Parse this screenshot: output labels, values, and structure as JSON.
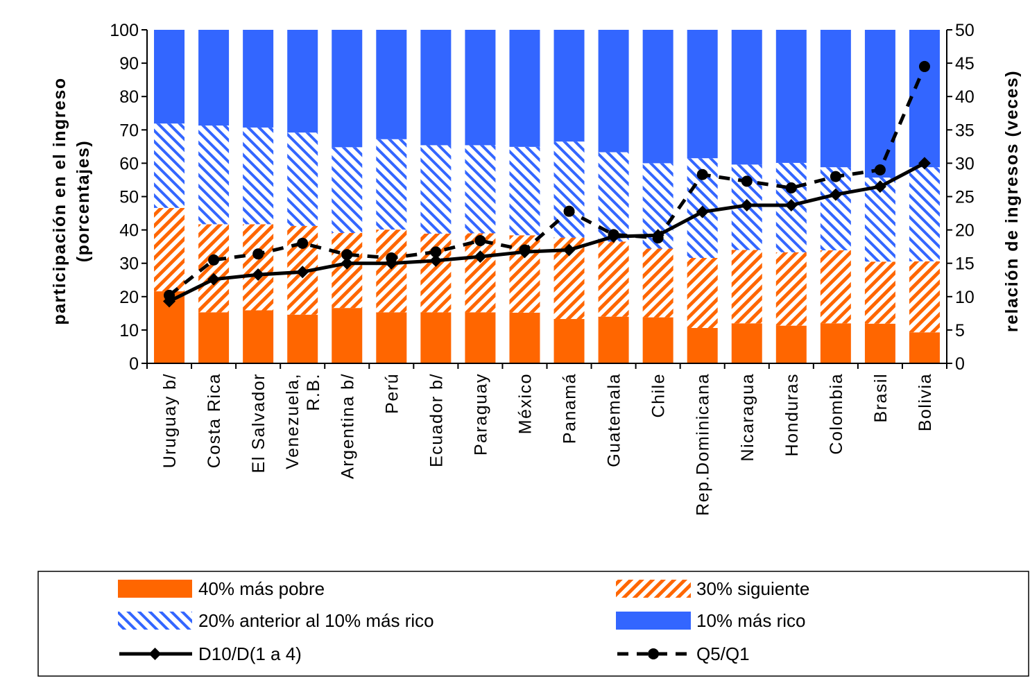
{
  "chart_data": {
    "type": "bar",
    "stacked": true,
    "categories": [
      "Uruguay b/",
      "Costa Rica",
      "El Salvador",
      "Venezuela, R.B.",
      "Argentina b/",
      "Perú",
      "Ecuador b/",
      "Paraguay",
      "México",
      "Panamá",
      "Guatemala",
      "Chile",
      "Rep.Dominicana",
      "Nicaragua",
      "Honduras",
      "Colombia",
      "Brasil",
      "Bolivia"
    ],
    "category_lines": [
      [
        "Uruguay b/"
      ],
      [
        "Costa Rica"
      ],
      [
        "El Salvador"
      ],
      [
        "Venezuela,",
        "R.B."
      ],
      [
        "Argentina b/"
      ],
      [
        "Perú"
      ],
      [
        "Ecuador b/"
      ],
      [
        "Paraguay"
      ],
      [
        "México"
      ],
      [
        "Panamá"
      ],
      [
        "Guatemala"
      ],
      [
        "Chile"
      ],
      [
        "Rep.Dominicana"
      ],
      [
        "Nicaragua"
      ],
      [
        "Honduras"
      ],
      [
        "Colombia"
      ],
      [
        "Brasil"
      ],
      [
        "Bolivia"
      ]
    ],
    "series": [
      {
        "name": "40% más pobre",
        "axis": "left",
        "kind": "bar",
        "color": "#FF6600",
        "values": [
          21.6,
          15.3,
          15.9,
          14.6,
          16.6,
          15.3,
          15.3,
          15.3,
          15.2,
          13.3,
          14.0,
          13.8,
          10.6,
          12.0,
          11.3,
          12.0,
          11.9,
          9.3
        ]
      },
      {
        "name": "30% siguiente",
        "axis": "left",
        "kind": "bar",
        "color": "#FF6600",
        "pattern": "orange-hatch",
        "values": [
          25.0,
          26.4,
          25.8,
          26.6,
          22.5,
          24.8,
          23.6,
          23.7,
          23.2,
          24.4,
          22.5,
          20.6,
          21.0,
          22.0,
          22.0,
          21.9,
          18.6,
          21.3
        ]
      },
      {
        "name": "20% anterior al 10% más rico",
        "axis": "left",
        "kind": "bar",
        "color": "#3366FF",
        "pattern": "blue-hatch",
        "values": [
          25.3,
          29.6,
          29.0,
          28.0,
          25.7,
          27.1,
          26.5,
          26.4,
          26.5,
          28.8,
          26.8,
          25.6,
          29.9,
          25.6,
          26.8,
          24.9,
          25.2,
          28.2
        ]
      },
      {
        "name": "10% más rico",
        "axis": "left",
        "kind": "bar",
        "color": "#3366FF",
        "values": [
          28.1,
          28.7,
          29.3,
          30.8,
          35.2,
          32.8,
          34.6,
          34.6,
          35.1,
          33.5,
          36.7,
          40.0,
          38.5,
          40.4,
          39.9,
          41.2,
          44.3,
          41.2
        ]
      },
      {
        "name": "D10/D(1 a 4)",
        "axis": "right",
        "kind": "line",
        "color": "#000000",
        "marker": "diamond",
        "dash": "solid",
        "values": [
          9.3,
          12.6,
          13.3,
          13.7,
          15.0,
          15.0,
          15.4,
          16.0,
          16.7,
          17.0,
          19.0,
          19.2,
          22.7,
          23.7,
          23.7,
          25.3,
          26.5,
          30.0
        ]
      },
      {
        "name": "Q5/Q1",
        "axis": "right",
        "kind": "line",
        "color": "#000000",
        "marker": "circle",
        "dash": "dashed",
        "values": [
          10.2,
          15.5,
          16.4,
          18.0,
          16.3,
          15.8,
          16.7,
          18.4,
          17.0,
          22.8,
          19.3,
          18.8,
          28.3,
          27.3,
          26.3,
          28.0,
          29.0,
          44.5
        ]
      }
    ],
    "ylabel": [
      "participación en el ingreso",
      "(porcentajes)"
    ],
    "y2label": "relación de ingresos (veces)",
    "ylim": [
      0,
      100
    ],
    "y2lim": [
      0,
      50
    ],
    "yticks": [
      0,
      10,
      20,
      30,
      40,
      50,
      60,
      70,
      80,
      90,
      100
    ],
    "y2ticks": [
      0,
      5,
      10,
      15,
      20,
      25,
      30,
      35,
      40,
      45,
      50
    ],
    "grid": false,
    "legend_position": "bottom"
  }
}
